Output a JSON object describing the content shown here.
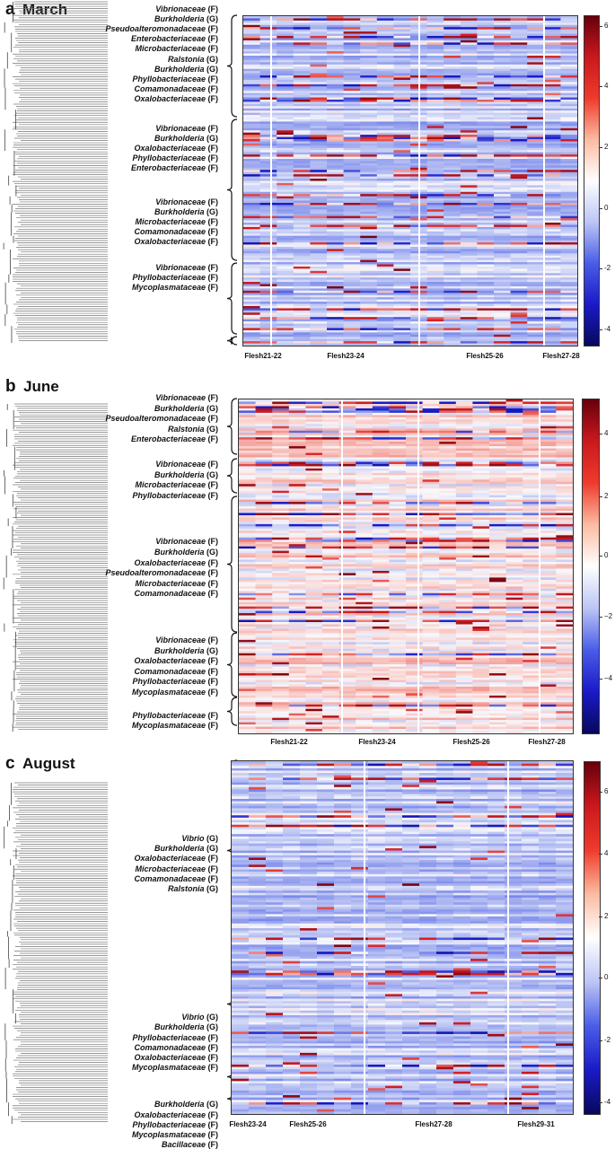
{
  "chart_data": [
    {
      "type": "heatmap",
      "panel_letter": "a",
      "title": "March",
      "sample_groups": [
        "Flesh21-22",
        "Flesh23-24",
        "Flesh25-26",
        "Flesh27-28"
      ],
      "colorbar": {
        "ticks": [
          "6",
          "4",
          "2",
          "0",
          "-2",
          "-4"
        ],
        "range": [
          -4.5,
          6.5
        ]
      },
      "taxa_labels": [
        {
          "name": "Vibrionaceae",
          "rank": "(F)"
        },
        {
          "name": "Burkholderia",
          "rank": "(G)"
        },
        {
          "name": "Pseudoalteromonadaceae",
          "rank": "(F)"
        },
        {
          "name": "Enterobacteriaceae",
          "rank": "(F)"
        },
        {
          "name": "Microbacteriaceae",
          "rank": "(F)"
        },
        {
          "name": "Ralstonia",
          "rank": "(G)"
        },
        {
          "name": "Burkholderia",
          "rank": "(G)"
        },
        {
          "name": "Phyllobacteriaceae",
          "rank": "(F)"
        },
        {
          "name": "Comamonadaceae",
          "rank": "(F)"
        },
        {
          "name": "Oxalobacteriaceae",
          "rank": "(F)"
        },
        {
          "name": "Vibrionaceae",
          "rank": "(F)"
        },
        {
          "name": "Burkholderia",
          "rank": "(G)"
        },
        {
          "name": "Oxalobacteriaceae",
          "rank": "(F)"
        },
        {
          "name": "Phyllobacteriaceae",
          "rank": "(F)"
        },
        {
          "name": "Enterobacteriaceae",
          "rank": "(F)"
        },
        {
          "name": "Vibrionaceae",
          "rank": "(F)"
        },
        {
          "name": "Burkholderia",
          "rank": "(G)"
        },
        {
          "name": "Microbacteriaceae",
          "rank": "(F)"
        },
        {
          "name": "Comamonadaceae",
          "rank": "(F)"
        },
        {
          "name": "Oxalobacteriaceae",
          "rank": "(F)"
        },
        {
          "name": "Vibrionaceae",
          "rank": "(F)"
        },
        {
          "name": "Phyllobacteriaceae",
          "rank": "(F)"
        },
        {
          "name": "Mycoplasmataceae",
          "rank": "(F)"
        }
      ]
    },
    {
      "type": "heatmap",
      "panel_letter": "b",
      "title": "June",
      "sample_groups": [
        "Flesh21-22",
        "Flesh23-24",
        "Flesh25-26",
        "Flesh27-28"
      ],
      "colorbar": {
        "ticks": [
          "4",
          "2",
          "0",
          "−2",
          "−4"
        ],
        "range": [
          -5.5,
          5.5
        ]
      },
      "taxa_labels": [
        {
          "name": "Vibrionaceae",
          "rank": "(F)"
        },
        {
          "name": "Burkholderia",
          "rank": "(G)"
        },
        {
          "name": "Pseudoalteromonadaceae",
          "rank": "(F)"
        },
        {
          "name": "Ralstonia",
          "rank": "(G)"
        },
        {
          "name": "Enterobacteriaceae",
          "rank": "(F)"
        },
        {
          "name": "Vibrionaceae",
          "rank": "(F)"
        },
        {
          "name": "Burkholderia",
          "rank": "(G)"
        },
        {
          "name": "Microbacteriaceae",
          "rank": "(F)"
        },
        {
          "name": "Phyllobacteriaceae",
          "rank": "(F)"
        },
        {
          "name": "Vibrionaceae",
          "rank": "(F)"
        },
        {
          "name": "Burkholderia",
          "rank": "(G)"
        },
        {
          "name": "Oxalobacteriaceae",
          "rank": "(F)"
        },
        {
          "name": "Pseudoalteromonadaceae",
          "rank": "(F)"
        },
        {
          "name": "Microbacteriaceae",
          "rank": "(F)"
        },
        {
          "name": "Comamonadaceae",
          "rank": "(F)"
        },
        {
          "name": "Vibrionaceae",
          "rank": "(F)"
        },
        {
          "name": "Burkholderia",
          "rank": "(G)"
        },
        {
          "name": "Oxalobacteriaceae",
          "rank": "(F)"
        },
        {
          "name": "Comamonadaceae",
          "rank": "(F)"
        },
        {
          "name": "Phyllobacteriaceae",
          "rank": "(F)"
        },
        {
          "name": "Mycoplasmataceae",
          "rank": "(F)"
        },
        {
          "name": "Phyllobacteriaceae",
          "rank": "(F)"
        },
        {
          "name": "Mycoplasmataceae",
          "rank": "(F)"
        }
      ]
    },
    {
      "type": "heatmap",
      "panel_letter": "c",
      "title": "August",
      "sample_groups": [
        "Flesh23-24",
        "Flesh25-26",
        "Flesh27-28",
        "Flesh29-31"
      ],
      "colorbar": {
        "ticks": [
          "6",
          "4",
          "2",
          "0",
          "-2",
          "-4"
        ],
        "range": [
          -4.5,
          6.5
        ]
      },
      "taxa_labels": [
        {
          "name": "Vibrio",
          "rank": "(G)"
        },
        {
          "name": "Burkholderia",
          "rank": "(G)"
        },
        {
          "name": "Oxalobacteriaceae",
          "rank": "(F)"
        },
        {
          "name": "Microbacteriaceae",
          "rank": "(F)"
        },
        {
          "name": "Comamonadaceae",
          "rank": "(F)"
        },
        {
          "name": "Ralstonia",
          "rank": "(G)"
        },
        {
          "name": "Vibrio",
          "rank": "(G)"
        },
        {
          "name": "Burkholderia",
          "rank": "(G)"
        },
        {
          "name": "Phyllobacteriaceae",
          "rank": "(F)"
        },
        {
          "name": "Comamonadaceae",
          "rank": "(F)"
        },
        {
          "name": "Oxalobacteriaceae",
          "rank": "(F)"
        },
        {
          "name": "Mycoplasmataceae",
          "rank": "(F)"
        },
        {
          "name": "Burkholderia",
          "rank": "(G)"
        },
        {
          "name": "Oxalobacteriaceae",
          "rank": "(F)"
        },
        {
          "name": "Phyllobacteriaceae",
          "rank": "(F)"
        },
        {
          "name": "Mycoplasmataceae",
          "rank": "(F)"
        },
        {
          "name": "Bacillaceae",
          "rank": "(F)"
        }
      ]
    }
  ]
}
